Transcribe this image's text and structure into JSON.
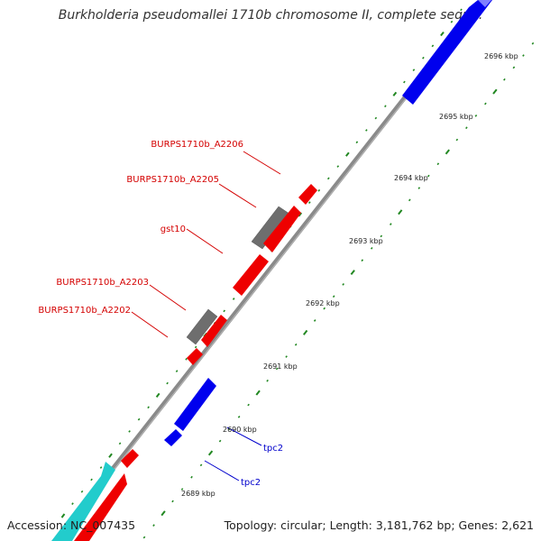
{
  "title": "Burkholderia pseudomallei 1710b chromosome II, complete sequ...",
  "footer": {
    "accession": "Accession: NC_007435",
    "summary": "Topology: circular; Length: 3,181,762 bp; Genes: 2,621"
  },
  "scale_labels": [
    "2689 kbp",
    "2690 kbp",
    "2691 kbp",
    "2692 kbp",
    "2693 kbp",
    "2694 kbp",
    "2695 kbp",
    "2696 kbp"
  ],
  "gene_labels": [
    {
      "text": "BURPS1710b_A2206",
      "color": "#d40000"
    },
    {
      "text": "BURPS1710b_A2205",
      "color": "#d40000"
    },
    {
      "text": "gst10",
      "color": "#d40000"
    },
    {
      "text": "BURPS1710b_A2203",
      "color": "#d40000"
    },
    {
      "text": "BURPS1710b_A2202",
      "color": "#d40000"
    },
    {
      "text": "tpc2",
      "color": "#0000cc"
    },
    {
      "text": "tpc2",
      "color": "#0000cc"
    }
  ],
  "colors": {
    "cds": "#ff0000",
    "rna_gene": "#0000ee",
    "pseudo": "#666666",
    "other": "#22cccc",
    "tick": "#228822",
    "backbone": "#888888"
  }
}
